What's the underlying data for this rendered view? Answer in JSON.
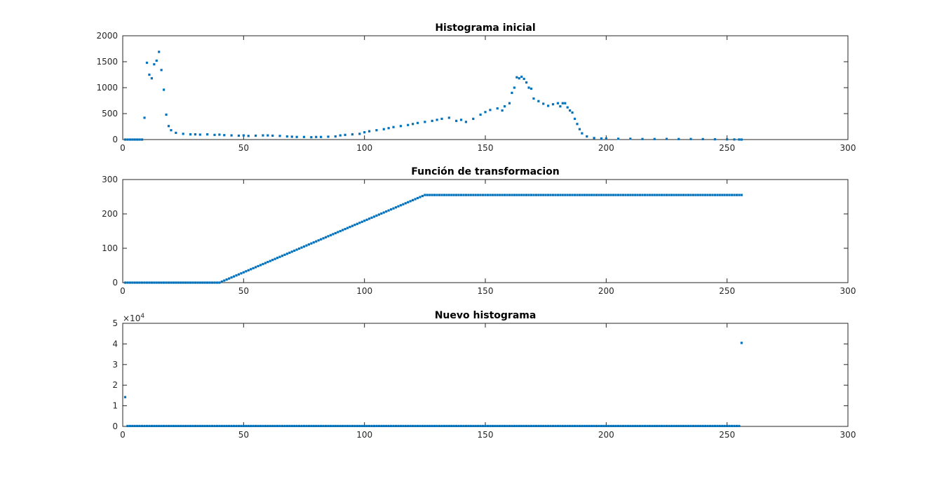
{
  "chart_data": [
    {
      "type": "scatter",
      "title": "Histograma inicial",
      "xlabel": "",
      "ylabel": "",
      "xlim": [
        0,
        300
      ],
      "ylim": [
        0,
        2000
      ],
      "xticks": [
        0,
        50,
        100,
        150,
        200,
        250,
        300
      ],
      "yticks": [
        0,
        500,
        1000,
        1500,
        2000
      ],
      "grid": false,
      "marker_color": "#0072BD",
      "series": [
        {
          "x": [
            1,
            2,
            3,
            4,
            5,
            6,
            7,
            8,
            9,
            10,
            11,
            12,
            13,
            14,
            15,
            16,
            17,
            18,
            19,
            20,
            22,
            25,
            28,
            30,
            32,
            35,
            38,
            40,
            42,
            45,
            48,
            50,
            52,
            55,
            58,
            60,
            62,
            65,
            68,
            70,
            72,
            75,
            78,
            80,
            82,
            85,
            88,
            90,
            92,
            95,
            98,
            100,
            102,
            105,
            108,
            110,
            112,
            115,
            118,
            120,
            122,
            125,
            128,
            130,
            132,
            135,
            138,
            140,
            142,
            145,
            148,
            150,
            152,
            155,
            157,
            158,
            160,
            161,
            162,
            163,
            164,
            165,
            166,
            167,
            168,
            169,
            170,
            172,
            174,
            176,
            178,
            180,
            181,
            182,
            183,
            184,
            185,
            186,
            187,
            188,
            189,
            190,
            192,
            195,
            198,
            200,
            205,
            210,
            215,
            220,
            225,
            230,
            235,
            240,
            245,
            250,
            253,
            255,
            256
          ],
          "y": [
            0,
            0,
            0,
            0,
            0,
            0,
            0,
            0,
            420,
            1480,
            1250,
            1180,
            1450,
            1520,
            1690,
            1340,
            960,
            480,
            260,
            180,
            130,
            110,
            100,
            100,
            95,
            100,
            90,
            95,
            85,
            80,
            75,
            80,
            70,
            75,
            80,
            80,
            75,
            70,
            60,
            55,
            50,
            50,
            45,
            50,
            50,
            55,
            60,
            80,
            90,
            100,
            110,
            140,
            160,
            180,
            200,
            220,
            240,
            260,
            280,
            300,
            320,
            340,
            360,
            380,
            400,
            420,
            360,
            380,
            340,
            400,
            480,
            530,
            570,
            600,
            560,
            640,
            700,
            900,
            1000,
            1200,
            1180,
            1210,
            1170,
            1100,
            1000,
            980,
            790,
            740,
            690,
            650,
            680,
            700,
            640,
            700,
            700,
            620,
            560,
            520,
            400,
            300,
            200,
            120,
            60,
            30,
            20,
            20,
            15,
            15,
            10,
            10,
            12,
            10,
            10,
            8,
            5,
            3,
            2,
            1,
            0
          ]
        }
      ]
    },
    {
      "type": "scatter",
      "title": "Función de transformacion",
      "xlabel": "",
      "ylabel": "",
      "xlim": [
        0,
        300
      ],
      "ylim": [
        0,
        300
      ],
      "xticks": [
        0,
        50,
        100,
        150,
        200,
        250,
        300
      ],
      "yticks": [
        0,
        100,
        200,
        300
      ],
      "grid": false,
      "marker_color": "#0072BD",
      "series": [
        {
          "x_start": 1,
          "x_end": 256,
          "breakpoints": [
            [
              1,
              0
            ],
            [
              40,
              0
            ],
            [
              125,
              255
            ],
            [
              256,
              255
            ]
          ]
        }
      ]
    },
    {
      "type": "scatter",
      "title": "Nuevo histograma",
      "xlabel": "",
      "ylabel": "",
      "xlim": [
        0,
        300
      ],
      "ylim": [
        0,
        5
      ],
      "y_exponent_label": "×10",
      "y_exponent": "4",
      "xticks": [
        0,
        50,
        100,
        150,
        200,
        250,
        300
      ],
      "yticks": [
        0,
        1,
        2,
        3,
        4,
        5
      ],
      "grid": false,
      "marker_color": "#0072BD",
      "series": [
        {
          "x_start": 1,
          "x_end": 256,
          "baseline": 0.02,
          "outliers": [
            [
              1,
              1.42
            ],
            [
              256,
              4.05
            ]
          ]
        }
      ]
    }
  ]
}
